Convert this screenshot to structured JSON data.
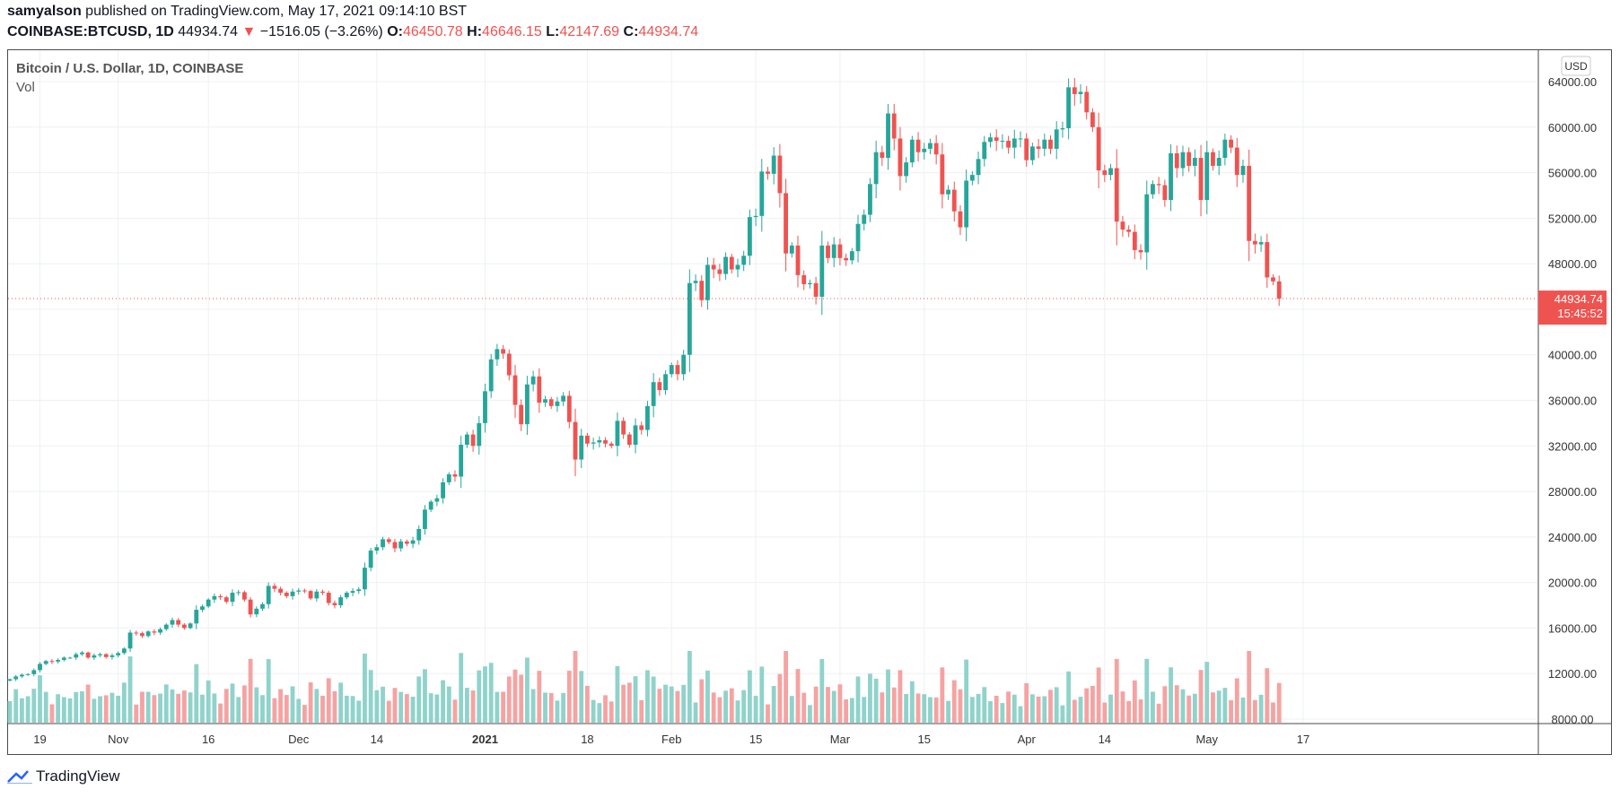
{
  "header": {
    "publisher": "samyalson",
    "published_text": "published on TradingView.com, May 17, 2021 09:14:10 BST",
    "symbol": "COINBASE:BTCUSD, 1D",
    "last": "44934.74",
    "change_arrow": "▼",
    "change": "−1516.05 (−3.26%)",
    "open_label": "O:",
    "open": "46450.78",
    "high_label": "H:",
    "high": "46646.15",
    "low_label": "L:",
    "low": "42147.69",
    "close_label": "C:",
    "close": "44934.74"
  },
  "legend": {
    "title": "Bitcoin / U.S. Dollar, 1D, COINBASE",
    "volume_label": "Vol"
  },
  "currency_badge": "USD",
  "price_tag": {
    "price": "44934.74",
    "countdown": "15:45:52"
  },
  "footer": {
    "brand": "TradingView"
  },
  "colors": {
    "up": "#26a69a",
    "down": "#ef5350",
    "up_vol": "#8fd3cb",
    "down_vol": "#f5a3a2",
    "grid": "#eef0f3"
  },
  "chart_data": {
    "type": "candlestick",
    "title": "Bitcoin / U.S. Dollar, 1D, COINBASE",
    "ylim": [
      7000,
      67200
    ],
    "y_ticks": [
      "8000.00",
      "12000.00",
      "16000.00",
      "20000.00",
      "24000.00",
      "28000.00",
      "32000.00",
      "36000.00",
      "40000.00",
      "44000.00",
      "48000.00",
      "52000.00",
      "56000.00",
      "60000.00",
      "64000.00"
    ],
    "x_ticks": [
      {
        "label": "19",
        "day": 5
      },
      {
        "label": "Nov",
        "day": 18
      },
      {
        "label": "16",
        "day": 33
      },
      {
        "label": "Dec",
        "day": 48
      },
      {
        "label": "14",
        "day": 61
      },
      {
        "label": "2021",
        "day": 79,
        "bold": true
      },
      {
        "label": "18",
        "day": 96
      },
      {
        "label": "Feb",
        "day": 110
      },
      {
        "label": "15",
        "day": 124
      },
      {
        "label": "Mar",
        "day": 138
      },
      {
        "label": "15",
        "day": 152
      },
      {
        "label": "Apr",
        "day": 169
      },
      {
        "label": "14",
        "day": 182
      },
      {
        "label": "May",
        "day": 199
      },
      {
        "label": "17",
        "day": 215
      }
    ],
    "first_day": 0,
    "last_day": 215,
    "closes": [
      11500,
      11750,
      11900,
      11950,
      12300,
      12850,
      13100,
      13050,
      13200,
      13400,
      13400,
      13700,
      13850,
      13400,
      13600,
      13700,
      13450,
      13600,
      13800,
      14200,
      15600,
      15550,
      15300,
      15700,
      15600,
      15900,
      16300,
      16700,
      16300,
      16000,
      16400,
      17600,
      17900,
      18500,
      18800,
      18700,
      18300,
      19100,
      19150,
      18500,
      17200,
      17700,
      18100,
      19700,
      19450,
      19100,
      18800,
      19200,
      19300,
      19250,
      18600,
      19200,
      19100,
      18200,
      18000,
      18700,
      19100,
      19250,
      19400,
      21300,
      22800,
      23100,
      23800,
      23550,
      23000,
      23600,
      23400,
      23700,
      24700,
      26400,
      27100,
      27400,
      28800,
      29500,
      29300,
      32100,
      33000,
      32000,
      34000,
      36800,
      39600,
      40500,
      40100,
      38200,
      35600,
      33900,
      37400,
      38100,
      35800,
      36100,
      35500,
      35900,
      36400,
      34100,
      30800,
      32900,
      32200,
      32300,
      32500,
      32200,
      32000,
      34200,
      33000,
      32100,
      33800,
      33400,
      35500,
      37600,
      36900,
      38300,
      39100,
      38300,
      40000,
      46300,
      46500,
      44800,
      47900,
      47500,
      47100,
      48600,
      47500,
      47900,
      48700,
      52100,
      52200,
      56100,
      55900,
      57500,
      54200,
      48900,
      49600,
      47000,
      46200,
      46300,
      45100,
      49600,
      48500,
      49700,
      48500,
      48300,
      49100,
      51500,
      52300,
      55000,
      57800,
      57300,
      61200,
      59000,
      55700,
      56900,
      58900,
      57800,
      58100,
      58600,
      57600,
      54100,
      54500,
      52600,
      51200,
      55300,
      55800,
      57200,
      58700,
      59100,
      58800,
      58800,
      58200,
      59000,
      59000,
      57100,
      58300,
      58100,
      58900,
      58100,
      59800,
      59900,
      63500,
      62900,
      63100,
      61300,
      60000,
      56200,
      55800,
      56400,
      51700,
      51000,
      50800,
      49200,
      49000,
      54100,
      55000,
      54900,
      53600,
      57700,
      56400,
      57800,
      56600,
      57300,
      53600,
      57800,
      56600,
      57300,
      58900,
      58200,
      55800,
      56600,
      50000,
      49700,
      49900,
      46800,
      46450,
      44935
    ],
    "volume_max": 22000,
    "volume_range": [
      7500,
      22000
    ]
  }
}
